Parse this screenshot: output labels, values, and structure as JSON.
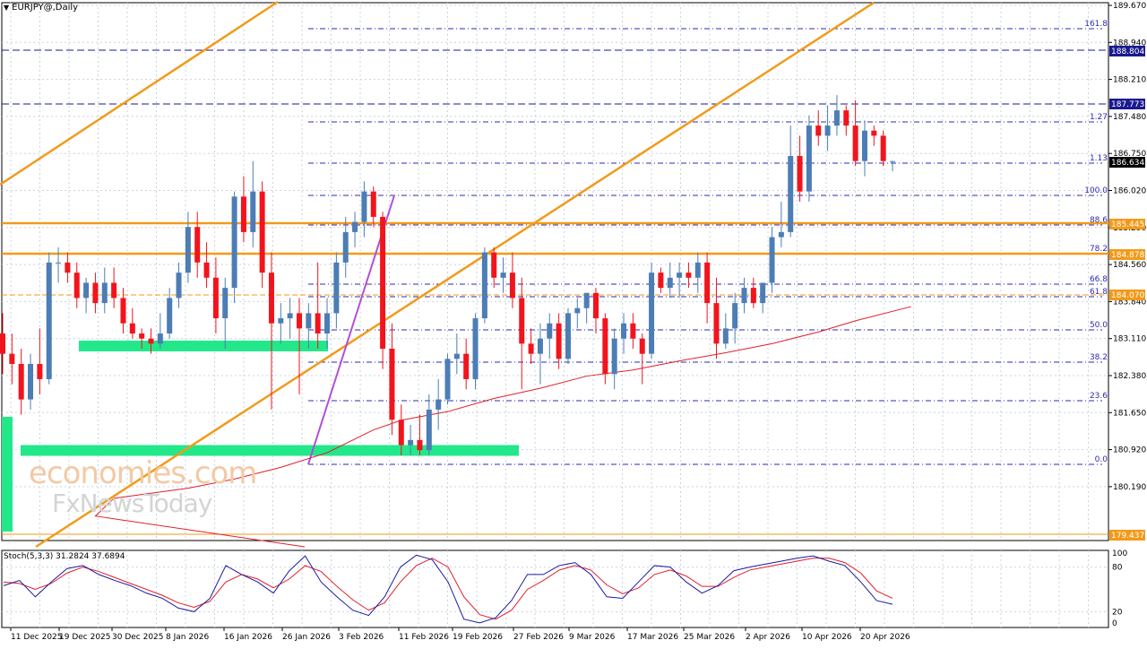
{
  "header": {
    "symbol_label": "EURJPY@,Daily"
  },
  "stoch_label": "Stoch(5,3,3) 31.2824 37.6894",
  "watermark": {
    "line1": "economies.com",
    "line2": "FxNewsToday"
  },
  "colors": {
    "bull": "#4c7db5",
    "bear": "#f2141c",
    "grid": "#c9d4df",
    "fib": "#2b2bb5",
    "orange": "#f29a1a",
    "ma": "#e0202a",
    "green_zone": "#22e88a",
    "purple": "#b24fd6",
    "stoch_main": "#1a1aa0",
    "stoch_signal": "#e0202a"
  },
  "chart_data": {
    "type": "candlestick",
    "price_axis_ticks": [
      "189.670",
      "188.940",
      "188.210",
      "187.480",
      "186.750",
      "186.020",
      "185.290",
      "184.560",
      "183.840",
      "183.110",
      "182.380",
      "181.650",
      "180.920",
      "180.190"
    ],
    "date_ticks": [
      "11 Dec 2025",
      "19 Dec 2025",
      "30 Dec 2025",
      "8 Jan 2026",
      "16 Jan 2026",
      "26 Jan 2026",
      "3 Feb 2026",
      "11 Feb 2026",
      "19 Feb 2026",
      "27 Feb 2026",
      "9 Mar 2026",
      "17 Mar 2026",
      "25 Mar 2026",
      "2 Apr 2026",
      "10 Apr 2026",
      "20 Apr 2026"
    ],
    "price_tags": [
      {
        "value": "188.804",
        "type": "blue"
      },
      {
        "value": "187.773",
        "type": "blue"
      },
      {
        "value": "186.634",
        "type": "black"
      },
      {
        "value": "185.445",
        "type": "orange"
      },
      {
        "value": "184.878",
        "type": "orange"
      },
      {
        "value": "184.070",
        "type": "orange"
      },
      {
        "value": "179.437",
        "type": "orange"
      }
    ],
    "fib_levels": [
      "161.8",
      "1.27",
      "1.13",
      "100.0",
      "88.6",
      "78.2",
      "66.8",
      "61.8",
      "50.0",
      "38.2",
      "23.6",
      "0.0"
    ],
    "stoch_axis": [
      "100",
      "80",
      "20",
      "0"
    ],
    "candles": [
      [
        183.2,
        183.6,
        182.4,
        182.8
      ],
      [
        182.8,
        183.2,
        182.2,
        182.6
      ],
      [
        182.6,
        182.9,
        181.6,
        181.9
      ],
      [
        181.9,
        182.8,
        181.7,
        182.6
      ],
      [
        182.6,
        183.3,
        182.0,
        182.3
      ],
      [
        182.3,
        184.8,
        182.2,
        184.6
      ],
      [
        184.6,
        184.9,
        184.2,
        184.6
      ],
      [
        184.6,
        184.8,
        184.2,
        184.4
      ],
      [
        184.4,
        184.6,
        183.7,
        183.9
      ],
      [
        183.9,
        184.3,
        183.6,
        184.2
      ],
      [
        184.2,
        184.4,
        183.6,
        183.8
      ],
      [
        183.8,
        184.5,
        183.6,
        184.2
      ],
      [
        184.2,
        184.5,
        183.7,
        183.9
      ],
      [
        183.9,
        184.1,
        183.2,
        183.4
      ],
      [
        183.4,
        183.7,
        183.1,
        183.2
      ],
      [
        183.2,
        183.3,
        182.9,
        183.1
      ],
      [
        183.1,
        183.3,
        182.8,
        183.0
      ],
      [
        183.0,
        183.6,
        182.9,
        183.2
      ],
      [
        183.2,
        184.1,
        183.1,
        183.9
      ],
      [
        183.9,
        184.6,
        183.7,
        184.4
      ],
      [
        184.4,
        185.6,
        184.2,
        185.3
      ],
      [
        185.3,
        185.6,
        184.3,
        184.6
      ],
      [
        184.6,
        185.0,
        184.1,
        184.3
      ],
      [
        184.3,
        184.7,
        183.2,
        183.5
      ],
      [
        183.5,
        184.3,
        182.9,
        184.1
      ],
      [
        184.1,
        186.0,
        183.8,
        185.9
      ],
      [
        185.9,
        186.3,
        185.0,
        185.2
      ],
      [
        185.2,
        186.6,
        184.9,
        186.0
      ],
      [
        186.0,
        186.2,
        184.1,
        184.4
      ],
      [
        184.4,
        184.8,
        181.7,
        183.4
      ],
      [
        183.4,
        183.8,
        183.0,
        183.5
      ],
      [
        183.5,
        183.9,
        183.1,
        183.6
      ],
      [
        183.6,
        183.9,
        182.0,
        183.3
      ],
      [
        183.3,
        183.8,
        182.9,
        183.6
      ],
      [
        183.6,
        184.6,
        182.9,
        183.2
      ],
      [
        183.2,
        183.9,
        182.9,
        183.6
      ],
      [
        183.6,
        184.8,
        183.3,
        184.6
      ],
      [
        184.6,
        185.5,
        184.3,
        185.2
      ],
      [
        185.2,
        185.6,
        184.9,
        185.4
      ],
      [
        185.4,
        186.2,
        185.1,
        186.0
      ],
      [
        186.0,
        186.1,
        185.3,
        185.5
      ],
      [
        185.5,
        185.6,
        182.5,
        182.9
      ],
      [
        182.9,
        183.4,
        181.2,
        181.5
      ],
      [
        181.5,
        181.8,
        180.8,
        181.0
      ],
      [
        181.0,
        181.4,
        180.8,
        181.1
      ],
      [
        181.1,
        181.6,
        180.8,
        180.9
      ],
      [
        180.9,
        182.0,
        180.8,
        181.7
      ],
      [
        181.7,
        182.3,
        181.3,
        181.9
      ],
      [
        181.9,
        182.8,
        181.8,
        182.7
      ],
      [
        182.7,
        183.2,
        182.4,
        182.8
      ],
      [
        182.8,
        183.1,
        182.1,
        182.3
      ],
      [
        182.3,
        183.6,
        182.1,
        183.5
      ],
      [
        183.5,
        184.9,
        183.4,
        184.8
      ],
      [
        184.8,
        184.9,
        184.1,
        184.3
      ],
      [
        184.3,
        184.7,
        184.0,
        184.4
      ],
      [
        184.4,
        184.8,
        183.7,
        183.9
      ],
      [
        183.9,
        184.3,
        182.1,
        183.0
      ],
      [
        183.0,
        183.3,
        182.6,
        182.8
      ],
      [
        182.8,
        183.4,
        182.2,
        183.1
      ],
      [
        183.1,
        183.6,
        182.7,
        183.4
      ],
      [
        183.4,
        183.6,
        182.5,
        182.7
      ],
      [
        182.7,
        183.7,
        182.6,
        183.6
      ],
      [
        183.6,
        183.9,
        183.3,
        183.7
      ],
      [
        183.7,
        184.0,
        183.4,
        184.0
      ],
      [
        184.0,
        184.1,
        183.2,
        183.5
      ],
      [
        183.5,
        183.6,
        182.2,
        182.4
      ],
      [
        182.4,
        183.3,
        182.1,
        183.1
      ],
      [
        183.1,
        183.6,
        182.8,
        183.4
      ],
      [
        183.4,
        183.6,
        182.9,
        183.1
      ],
      [
        183.1,
        183.2,
        182.2,
        182.8
      ],
      [
        182.8,
        184.6,
        182.7,
        184.4
      ],
      [
        184.4,
        184.5,
        184.0,
        184.1
      ],
      [
        184.1,
        184.6,
        183.9,
        184.3
      ],
      [
        184.3,
        184.6,
        183.9,
        184.4
      ],
      [
        184.4,
        184.6,
        184.1,
        184.3
      ],
      [
        184.3,
        184.8,
        184.0,
        184.6
      ],
      [
        184.6,
        184.8,
        183.4,
        183.8
      ],
      [
        183.8,
        184.3,
        182.7,
        183.0
      ],
      [
        183.0,
        183.6,
        182.9,
        183.3
      ],
      [
        183.3,
        184.0,
        183.0,
        183.8
      ],
      [
        183.8,
        184.3,
        183.6,
        184.1
      ],
      [
        184.1,
        184.3,
        183.7,
        183.8
      ],
      [
        183.8,
        184.2,
        183.6,
        184.2
      ],
      [
        184.2,
        185.3,
        184.0,
        185.1
      ],
      [
        185.1,
        185.8,
        184.9,
        185.2
      ],
      [
        185.2,
        187.3,
        185.1,
        186.7
      ],
      [
        186.7,
        187.1,
        185.8,
        186.0
      ],
      [
        186.0,
        187.5,
        185.8,
        187.3
      ],
      [
        187.3,
        187.6,
        186.9,
        187.1
      ],
      [
        187.1,
        187.7,
        186.8,
        187.3
      ],
      [
        187.3,
        187.9,
        187.1,
        187.6
      ],
      [
        187.6,
        187.7,
        187.1,
        187.3
      ],
      [
        187.3,
        187.8,
        186.5,
        186.6
      ],
      [
        186.6,
        187.4,
        186.3,
        187.2
      ],
      [
        187.2,
        187.3,
        186.9,
        187.1
      ],
      [
        187.1,
        187.2,
        186.5,
        186.6
      ],
      [
        186.6,
        186.6,
        186.4,
        186.6
      ]
    ],
    "ma_values": [
      [
        12,
        179.95
      ],
      [
        20,
        180.15
      ],
      [
        25,
        180.33
      ],
      [
        30,
        180.56
      ],
      [
        35,
        180.85
      ],
      [
        40,
        181.3
      ],
      [
        43,
        181.49
      ],
      [
        48,
        181.66
      ],
      [
        53,
        181.92
      ],
      [
        58,
        182.12
      ],
      [
        63,
        182.36
      ],
      [
        68,
        182.48
      ],
      [
        73,
        182.66
      ],
      [
        78,
        182.82
      ],
      [
        83,
        183.0
      ],
      [
        88,
        183.23
      ],
      [
        92,
        183.45
      ],
      [
        98,
        183.73
      ]
    ],
    "stoch_main": [
      55,
      62,
      40,
      60,
      78,
      82,
      70,
      62,
      55,
      45,
      38,
      25,
      20,
      38,
      82,
      70,
      60,
      45,
      75,
      95,
      60,
      40,
      22,
      15,
      40,
      80,
      96,
      90,
      60,
      10,
      5,
      12,
      35,
      70,
      70,
      82,
      86,
      70,
      40,
      38,
      60,
      82,
      80,
      60,
      45,
      55,
      75,
      80,
      84,
      88,
      92,
      95,
      88,
      82,
      60,
      35,
      30
    ],
    "stoch_signal": [
      60,
      58,
      50,
      58,
      72,
      80,
      74,
      66,
      58,
      50,
      42,
      32,
      26,
      34,
      60,
      70,
      64,
      52,
      64,
      82,
      74,
      54,
      36,
      22,
      32,
      60,
      82,
      92,
      80,
      40,
      16,
      10,
      22,
      50,
      62,
      76,
      82,
      76,
      56,
      44,
      52,
      70,
      76,
      68,
      54,
      54,
      66,
      76,
      80,
      84,
      88,
      92,
      92,
      86,
      72,
      48,
      38
    ]
  }
}
